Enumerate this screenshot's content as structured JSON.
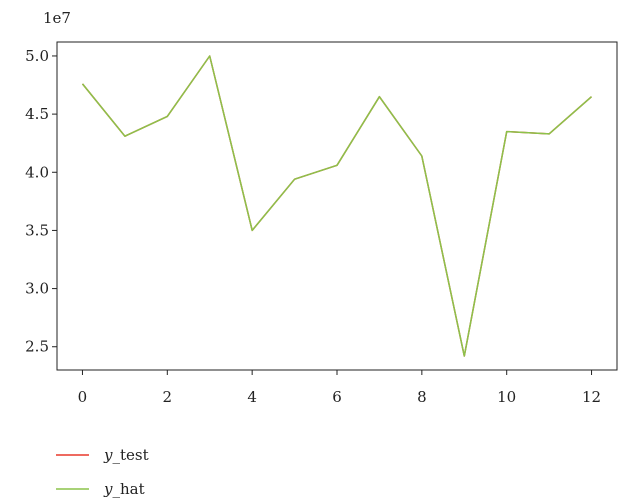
{
  "chart_data": {
    "type": "line",
    "x": [
      0,
      1,
      2,
      3,
      4,
      5,
      6,
      7,
      8,
      9,
      10,
      11,
      12
    ],
    "series": [
      {
        "name": "y_test",
        "name_prefix": "y",
        "name_suffix": "_test",
        "color": "#e8382b",
        "values": [
          47600000.0,
          43100000.0,
          44800000.0,
          50000000.0,
          35000000.0,
          39400000.0,
          40600000.0,
          46500000.0,
          41400000.0,
          24200000.0,
          43500000.0,
          43300000.0,
          46500000.0
        ]
      },
      {
        "name": "y_hat",
        "name_prefix": "y",
        "name_suffix": "_hat",
        "color": "#8bc34a",
        "values": [
          47600000.0,
          43100000.0,
          44800000.0,
          50000000.0,
          35000000.0,
          39400000.0,
          40600000.0,
          46500000.0,
          41400000.0,
          24200000.0,
          43500000.0,
          43300000.0,
          46500000.0
        ]
      }
    ],
    "xticks": [
      0,
      2,
      4,
      6,
      8,
      10,
      12
    ],
    "xtick_labels": [
      "0",
      "2",
      "4",
      "6",
      "8",
      "10",
      "12"
    ],
    "yticks": [
      25000000.0,
      30000000.0,
      35000000.0,
      40000000.0,
      45000000.0,
      50000000.0
    ],
    "ytick_labels": [
      "2.5",
      "3.0",
      "3.5",
      "4.0",
      "4.5",
      "5.0"
    ],
    "y_offset_label": "1e7",
    "xlim": [
      -0.6,
      12.6
    ],
    "ylim": [
      23000000.0,
      51200000.0
    ],
    "grid": false,
    "legend_placement": "bottom-left",
    "line_color": "#8bc34a",
    "axis_color": "#222222"
  }
}
